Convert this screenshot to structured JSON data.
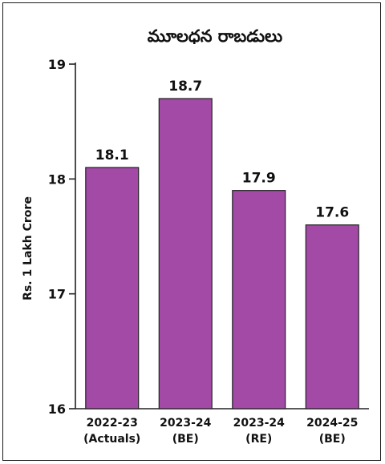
{
  "chart_data": {
    "type": "bar",
    "title": "మూలధన రాబడులు",
    "ylabel": "Rs. 1 Lakh Crore",
    "xlabel": "",
    "categories": [
      [
        "2022-23",
        "(Actuals)"
      ],
      [
        "2023-24",
        "(BE)"
      ],
      [
        "2023-24",
        "(RE)"
      ],
      [
        "2024-25",
        "(BE)"
      ]
    ],
    "values": [
      18.1,
      18.7,
      17.9,
      17.6
    ],
    "data_labels": [
      "18.1",
      "18.7",
      "17.9",
      "17.6"
    ],
    "ylim": [
      16,
      19
    ],
    "yticks": [
      16,
      17,
      18,
      19
    ],
    "grid": false,
    "legend": "none",
    "colors": {
      "bar": "#a24aa6",
      "bar_edge": "#222222",
      "axis": "#222222",
      "text": "#111111"
    }
  }
}
